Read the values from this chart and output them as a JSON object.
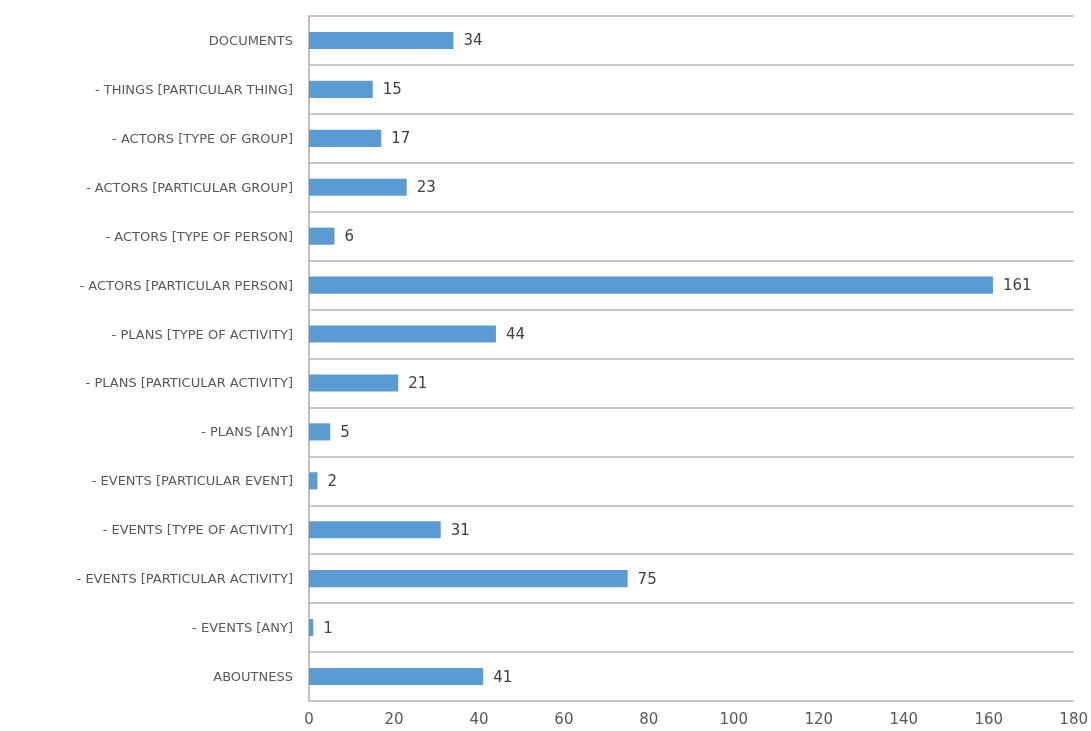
{
  "chart_data": {
    "type": "bar",
    "orientation": "horizontal",
    "categories": [
      "DOCUMENTS",
      "- THINGS [PARTICULAR THING]",
      "- ACTORS [TYPE OF GROUP]",
      "- ACTORS [PARTICULAR GROUP]",
      "- ACTORS [TYPE OF PERSON]",
      "- ACTORS [PARTICULAR PERSON]",
      "- PLANS [TYPE OF ACTIVITY]",
      "- PLANS [PARTICULAR ACTIVITY]",
      "- PLANS [ANY]",
      "- EVENTS [PARTICULAR EVENT]",
      "- EVENTS [TYPE OF ACTIVITY]",
      "- EVENTS [PARTICULAR ACTIVITY]",
      "- EVENTS [ANY]",
      "ABOUTNESS"
    ],
    "values": [
      34,
      15,
      17,
      23,
      6,
      161,
      44,
      21,
      5,
      2,
      31,
      75,
      1,
      41
    ],
    "color": "#5b9bd5",
    "xlim": [
      0,
      180
    ],
    "xticks": [
      0,
      20,
      40,
      60,
      80,
      100,
      120,
      140,
      160,
      180
    ],
    "grid": "y",
    "data_labels": true
  }
}
